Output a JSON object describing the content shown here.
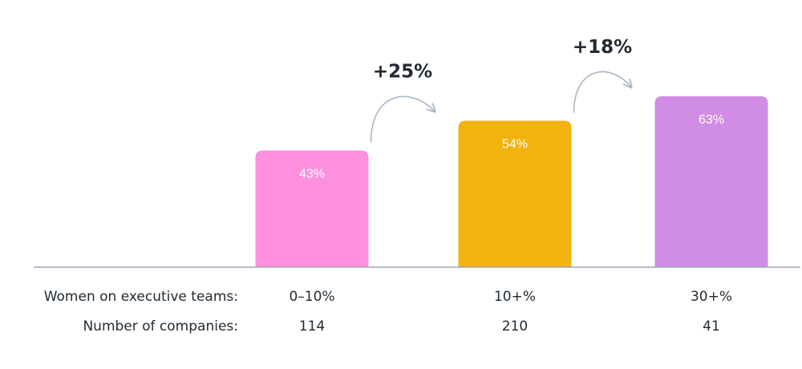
{
  "chart_data": {
    "type": "bar",
    "row_labels": {
      "categories": "Women on executive teams:",
      "counts": "Number of companies:"
    },
    "categories": [
      "0–10%",
      "10+%",
      "30+%"
    ],
    "counts": [
      "114",
      "210",
      "41"
    ],
    "values": [
      43,
      54,
      63
    ],
    "value_labels": [
      "43%",
      "54%",
      "63%"
    ],
    "unit": "%",
    "growth_annotations": [
      {
        "from": "0–10%",
        "to": "10+%",
        "label": "+25%"
      },
      {
        "from": "10+%",
        "to": "30+%",
        "label": "+18%"
      }
    ],
    "colors": [
      "#ff8fdf",
      "#f2b30f",
      "#d18ce3"
    ],
    "baseline_color": "#9aa6b3",
    "arrow_color": "#a9b6c4",
    "grid": false,
    "legend": "none"
  }
}
